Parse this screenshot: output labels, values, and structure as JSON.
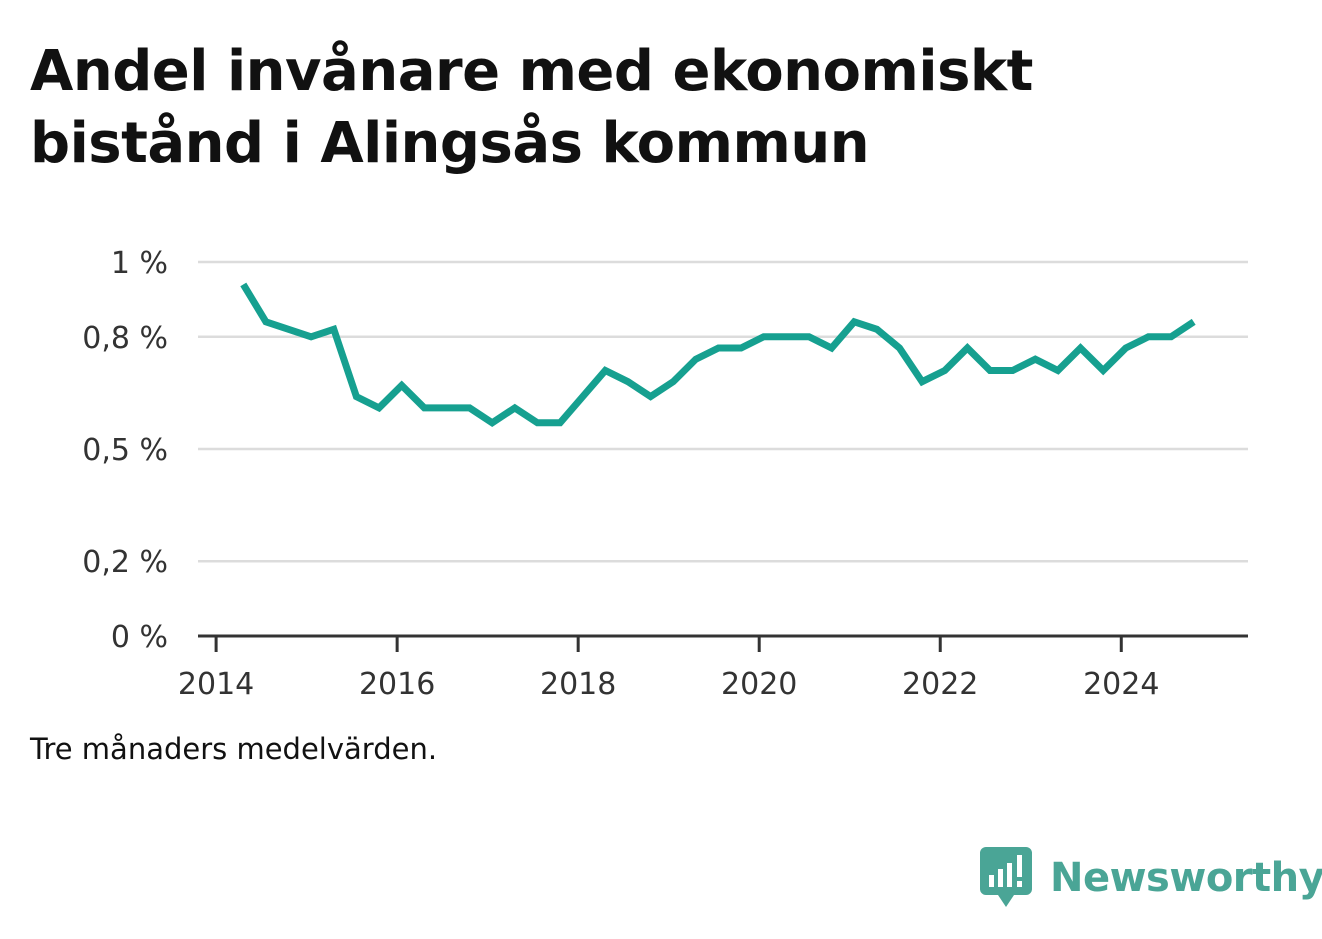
{
  "chart_data": {
    "type": "line",
    "title": "Andel invånare med ekonomiskt bistånd i Alingsås kommun",
    "caption": "Tre månaders medelvärden.",
    "y_ticks": [
      {
        "value": 0,
        "label": "0 %"
      },
      {
        "value": 0.2,
        "label": "0,2 %"
      },
      {
        "value": 0.5,
        "label": "0,5 %"
      },
      {
        "value": 0.8,
        "label": "0,8 %"
      },
      {
        "value": 1,
        "label": "1 %"
      }
    ],
    "x_ticks": [
      {
        "value": 2014,
        "label": "2014"
      },
      {
        "value": 2016,
        "label": "2016"
      },
      {
        "value": 2018,
        "label": "2018"
      },
      {
        "value": 2020,
        "label": "2020"
      },
      {
        "value": 2022,
        "label": "2022"
      },
      {
        "value": 2024,
        "label": "2024"
      }
    ],
    "xlim": [
      2013.8,
      2025.4
    ],
    "ylim": [
      0,
      1
    ],
    "grid": true,
    "line_color": "#16a090",
    "series": [
      {
        "points": [
          [
            2014.3,
            0.94
          ],
          [
            2014.55,
            0.84
          ],
          [
            2014.8,
            0.82
          ],
          [
            2015.05,
            0.8
          ],
          [
            2015.3,
            0.82
          ],
          [
            2015.55,
            0.64
          ],
          [
            2015.8,
            0.61
          ],
          [
            2016.05,
            0.67
          ],
          [
            2016.3,
            0.61
          ],
          [
            2016.55,
            0.61
          ],
          [
            2016.8,
            0.61
          ],
          [
            2017.05,
            0.57
          ],
          [
            2017.3,
            0.61
          ],
          [
            2017.55,
            0.57
          ],
          [
            2017.8,
            0.57
          ],
          [
            2018.05,
            0.64
          ],
          [
            2018.3,
            0.71
          ],
          [
            2018.55,
            0.68
          ],
          [
            2018.8,
            0.64
          ],
          [
            2019.05,
            0.68
          ],
          [
            2019.3,
            0.74
          ],
          [
            2019.55,
            0.77
          ],
          [
            2019.8,
            0.77
          ],
          [
            2020.05,
            0.8
          ],
          [
            2020.3,
            0.8
          ],
          [
            2020.55,
            0.8
          ],
          [
            2020.8,
            0.77
          ],
          [
            2021.05,
            0.84
          ],
          [
            2021.3,
            0.82
          ],
          [
            2021.55,
            0.77
          ],
          [
            2021.8,
            0.68
          ],
          [
            2022.05,
            0.71
          ],
          [
            2022.3,
            0.77
          ],
          [
            2022.55,
            0.71
          ],
          [
            2022.8,
            0.71
          ],
          [
            2023.05,
            0.74
          ],
          [
            2023.3,
            0.71
          ],
          [
            2023.55,
            0.77
          ],
          [
            2023.8,
            0.71
          ],
          [
            2024.05,
            0.77
          ],
          [
            2024.3,
            0.8
          ],
          [
            2024.55,
            0.8
          ],
          [
            2024.8,
            0.84
          ]
        ]
      }
    ]
  },
  "branding": {
    "name": "Newsworthy",
    "logo_color": "#4aa596"
  }
}
